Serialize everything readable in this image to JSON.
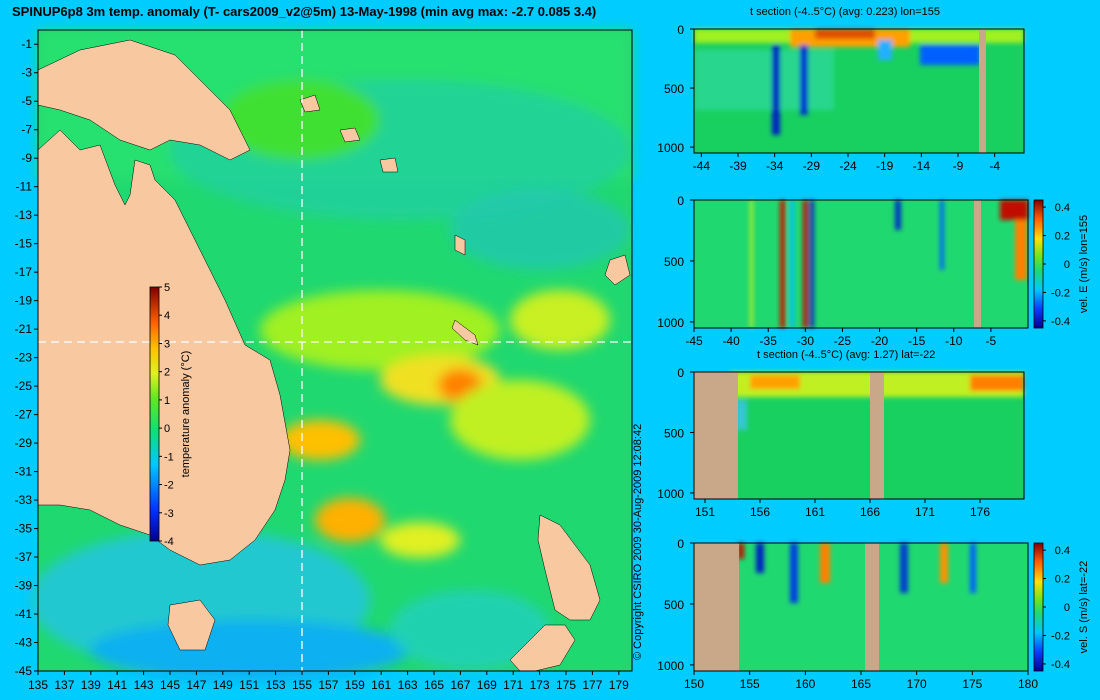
{
  "title": "SPINUP6p8 3m temp. anomaly (T- cars2009_v2@5m) 13-May-1998 (min avg max: -2.7 0.085 3.4)",
  "copyright": "© Copyright CSIRO 2009   30-Aug-2009 12:08:42",
  "colors": {
    "background": "#00ccff",
    "land": "#f8c8a0",
    "section_land": "#c8a888",
    "colormap": [
      "#00008f",
      "#0050ff",
      "#00c8ff",
      "#10e070",
      "#30e030",
      "#c0f020",
      "#ffe000",
      "#ff8000",
      "#c01000",
      "#800000"
    ]
  },
  "chart_data": [
    {
      "type": "heatmap",
      "panel": "map",
      "title": "SPINUP6p8 3m temp. anomaly (T- cars2009_v2@5m) 13-May-1998 (min avg max: -2.7 0.085 3.4)",
      "x_ticks": [
        "135",
        "137",
        "139",
        "141",
        "143",
        "145",
        "147",
        "149",
        "151",
        "153",
        "155",
        "157",
        "159",
        "161",
        "163",
        "165",
        "167",
        "169",
        "171",
        "173",
        "175",
        "177",
        "179"
      ],
      "y_ticks": [
        "-1",
        "-3",
        "-5",
        "-7",
        "-9",
        "-11",
        "-13",
        "-15",
        "-17",
        "-19",
        "-21",
        "-23",
        "-25",
        "-27",
        "-29",
        "-31",
        "-33",
        "-35",
        "-37",
        "-39",
        "-41",
        "-43",
        "-45"
      ],
      "xlim": [
        135,
        180
      ],
      "ylim": [
        -45,
        0
      ],
      "section_lines": {
        "lon": 155,
        "lat": -22
      },
      "colorbar": {
        "label": "temperature anomaly (°C)",
        "ticks": [
          "5",
          "4",
          "3",
          "2",
          "1",
          "0",
          "-1",
          "-2",
          "-3",
          "-4"
        ],
        "range": [
          -4,
          5
        ]
      },
      "stats": {
        "min": -2.7,
        "avg": 0.085,
        "max": 3.4
      }
    },
    {
      "type": "heatmap",
      "panel": "t-section-lon",
      "title": "t section (-4..5°C) (avg: 0.223) lon=155",
      "x_ticks": [
        "-44",
        "-39",
        "-34",
        "-29",
        "-24",
        "-19",
        "-14",
        "-9",
        "-4"
      ],
      "y_ticks": [
        "0",
        "500",
        "1000"
      ],
      "xlim": [
        -45,
        0
      ],
      "ylim": [
        1050,
        0
      ]
    },
    {
      "type": "heatmap",
      "panel": "v-section-lon",
      "title": "",
      "x_ticks": [
        "-45",
        "-40",
        "-35",
        "-30",
        "-25",
        "-20",
        "-15",
        "-10",
        "-5"
      ],
      "y_ticks": [
        "0",
        "500",
        "1000"
      ],
      "xlim": [
        -45,
        0
      ],
      "ylim": [
        1050,
        0
      ],
      "colorbar": {
        "label": "vel. E (m/s) lon=155",
        "ticks": [
          "0.4",
          "0.2",
          "0",
          "-0.2",
          "-0.4"
        ],
        "range": [
          -0.45,
          0.45
        ]
      }
    },
    {
      "type": "heatmap",
      "panel": "t-section-lat",
      "title": "t section (-4..5°C) (avg: 1.27) lat=-22",
      "x_ticks": [
        "151",
        "156",
        "161",
        "166",
        "171",
        "176"
      ],
      "y_ticks": [
        "0",
        "500",
        "1000"
      ],
      "xlim": [
        150,
        180
      ],
      "ylim": [
        1050,
        0
      ]
    },
    {
      "type": "heatmap",
      "panel": "v-section-lat",
      "title": "",
      "x_ticks": [
        "150",
        "155",
        "160",
        "165",
        "170",
        "175",
        "180"
      ],
      "y_ticks": [
        "0",
        "500",
        "1000"
      ],
      "xlim": [
        150,
        180
      ],
      "ylim": [
        1050,
        0
      ],
      "colorbar": {
        "label": "vel. S (m/s) lat=-22",
        "ticks": [
          "0.4",
          "0.2",
          "0",
          "-0.2",
          "-0.4"
        ],
        "range": [
          -0.45,
          0.45
        ]
      }
    }
  ]
}
